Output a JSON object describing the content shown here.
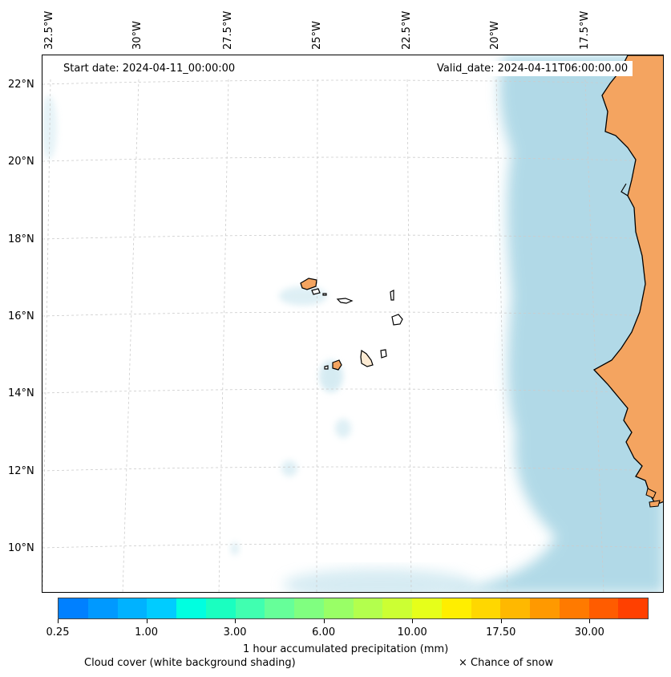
{
  "longitude_labels": [
    "32.5°W",
    "30°W",
    "27.5°W",
    "25°W",
    "22.5°W",
    "20°W",
    "17.5°W"
  ],
  "latitude_labels": [
    "22°N",
    "20°N",
    "18°N",
    "16°N",
    "14°N",
    "12°N",
    "10°N"
  ],
  "start_date": "Start date: 2024-04-11_00:00:00",
  "valid_date": "Valid_date: 2024-04-11T06:00:00.00",
  "colorbar": {
    "ticks": [
      "0.25",
      "1.00",
      "3.00",
      "6.00",
      "10.00",
      "17.50",
      "30.00"
    ],
    "colors": [
      "#0080ff",
      "#0099ff",
      "#00b2ff",
      "#00ccff",
      "#00ffe0",
      "#1affc0",
      "#40ffb0",
      "#66ff99",
      "#80ff80",
      "#99ff66",
      "#b3ff4d",
      "#ccff33",
      "#e6ff1a",
      "#ffee00",
      "#ffd700",
      "#ffb800",
      "#ff9900",
      "#ff7a00",
      "#ff5c00",
      "#ff4000"
    ],
    "label": "1 hour accumulated precipitation (mm)"
  },
  "legend": {
    "cloud_cover": "Cloud cover (white background shading)",
    "snow": "× Chance of snow"
  },
  "colors": {
    "land": "#f4a460",
    "cloud": "#add8e6",
    "grid": "#cccccc"
  }
}
